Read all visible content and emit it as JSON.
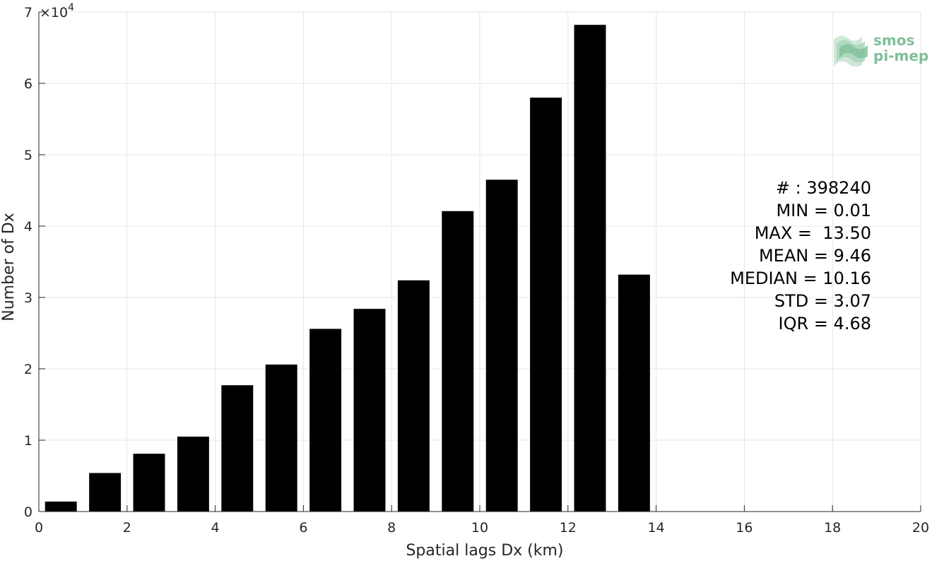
{
  "chart_data": {
    "type": "bar",
    "bin_width": 1,
    "bar_width_fraction": 0.72,
    "x": [
      0.5,
      1.5,
      2.5,
      3.5,
      4.5,
      5.5,
      6.5,
      7.5,
      8.5,
      9.5,
      10.5,
      11.5,
      12.5,
      13.5
    ],
    "values": [
      1400,
      5400,
      8100,
      10500,
      17700,
      20600,
      25600,
      28400,
      32400,
      42100,
      46500,
      58000,
      68200,
      33200
    ],
    "xlim": [
      0,
      20
    ],
    "ylim": [
      0,
      70000
    ],
    "xticks": [
      "0",
      "2",
      "4",
      "6",
      "8",
      "10",
      "12",
      "14",
      "16",
      "18",
      "20"
    ],
    "yticks": [
      "0",
      "1",
      "2",
      "3",
      "4",
      "5",
      "6",
      "7"
    ],
    "y_multiplier_label": "×10",
    "y_multiplier_exp": "4",
    "xlabel": "Spatial lags Dx (km)",
    "ylabel": "Number of Dx",
    "grid": true,
    "bar_color": "#000000",
    "stats": [
      "# : 398240",
      "MIN = 0.01",
      "MAX =  13.50",
      "MEAN = 9.46",
      "MEDIAN = 10.16",
      "STD = 3.07",
      "IQR = 4.68"
    ]
  },
  "logo": {
    "line1": "smos",
    "line2": "pi-mep",
    "color": "#7fbf9a"
  }
}
